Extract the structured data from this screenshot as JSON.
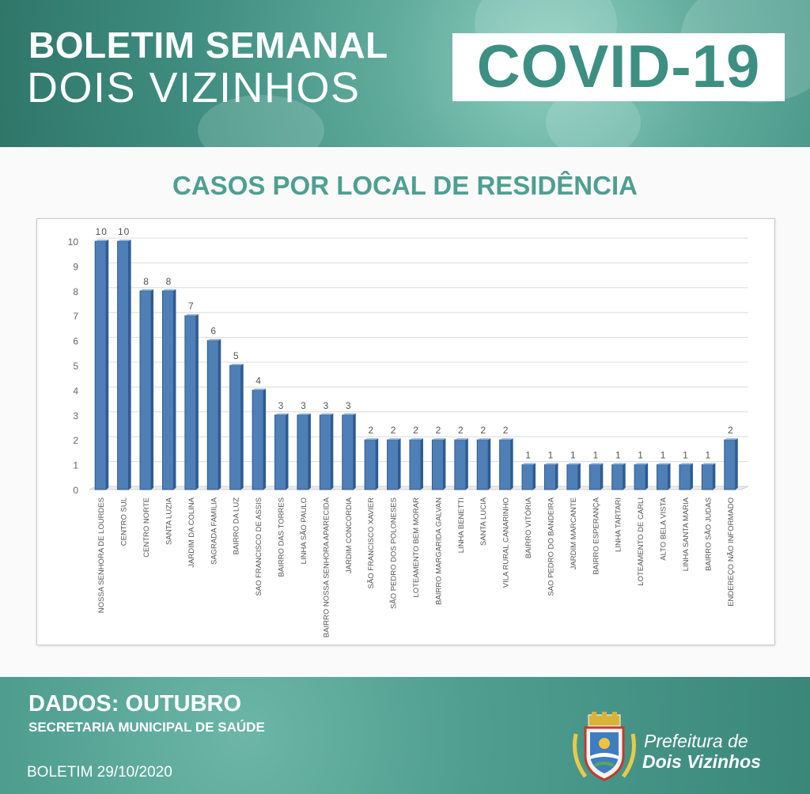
{
  "header": {
    "line1": "BOLETIM SEMANAL",
    "line2": "DOIS VIZINHOS",
    "badge": "COVID-19"
  },
  "chart_data": {
    "type": "bar",
    "title": "CASOS POR LOCAL DE RESIDÊNCIA",
    "xlabel": "",
    "ylabel": "",
    "ylim": [
      0,
      10
    ],
    "yticks": [
      0,
      1,
      2,
      3,
      4,
      5,
      6,
      7,
      8,
      9,
      10
    ],
    "grid": true,
    "legend": "none",
    "bar_color": "#4f7fb7",
    "categories": [
      "NOSSA SENHORA DE LOURDES",
      "CENTRO SUL",
      "CENTRO NORTE",
      "SANTA LUZIA",
      "JARDIM DA COLINA",
      "SAGRADA FAMILIA",
      "BAIRRO DA LUZ",
      "SAO FRANCISCO DE ASSIS",
      "BAIRRO DAS TORRES",
      "LINHA SÃO PAULO",
      "BAIRRO NOSSA SENHORA APARECIDA",
      "JARDIM CONCORDIA",
      "SÃO FRANCISCO XAVIER",
      "SÃO PEDRO DOS POLONESES",
      "LOTEAMENTO BEM MORAR",
      "BAIRRO MARGARIDA GALVAN",
      "LINHA BENETTI",
      "SANTA LUCIA",
      "VILA RURAL CANARINHO",
      "BAIRRO VITÓRIA",
      "SAO PEDRO DO BANDEIRA",
      "JARDIM MARCANTE",
      "BAIRRO ESPERANÇA",
      "LINHA TARTARI",
      "LOTEAMENTO DE CARLI",
      "ALTO BELA VISTA",
      "LINHA SANTA MARIA",
      "BAIRRO SÃO JUDAS",
      "ENDEREÇO NÃO INFORMADO"
    ],
    "values": [
      10,
      10,
      8,
      8,
      7,
      6,
      5,
      4,
      3,
      3,
      3,
      3,
      2,
      2,
      2,
      2,
      2,
      2,
      2,
      1,
      1,
      1,
      1,
      1,
      1,
      1,
      1,
      1,
      2
    ]
  },
  "footer": {
    "dados": "DADOS: OUTUBRO",
    "secretaria": "SECRETARIA MUNICIPAL DE SAÚDE",
    "boletim": "BOLETIM 29/10/2020",
    "prefeitura_line1": "Prefeitura de",
    "prefeitura_line2": "Dois Vizinhos"
  }
}
